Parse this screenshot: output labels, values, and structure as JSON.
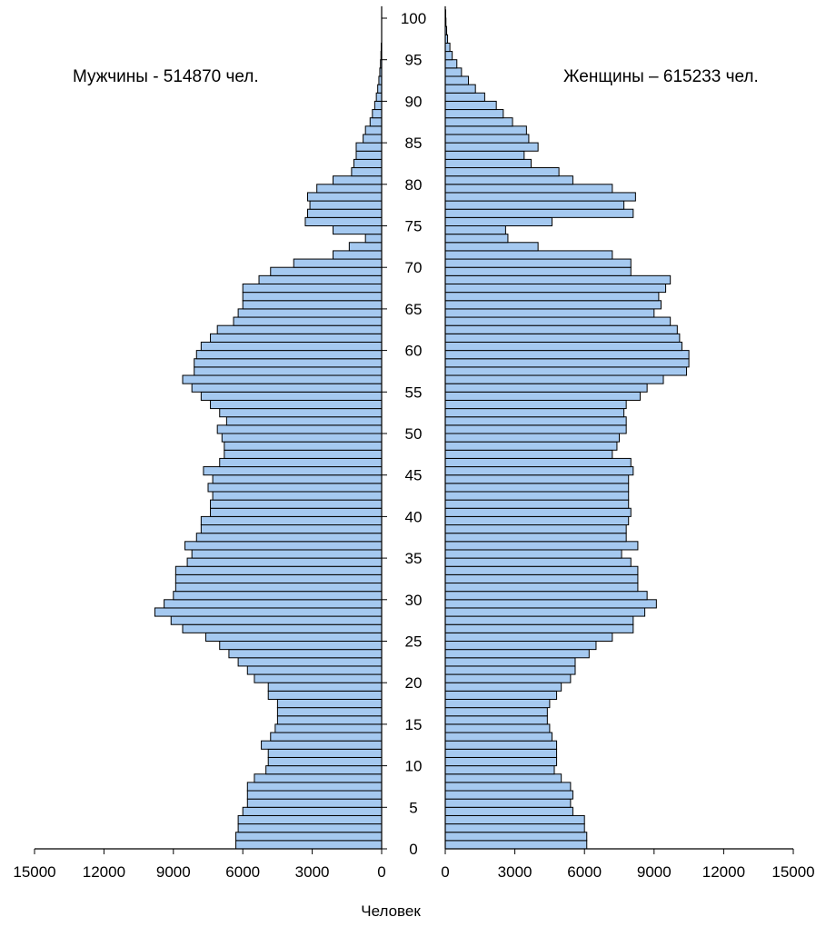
{
  "chart_data": {
    "type": "bar",
    "orientation": "horizontal-pyramid",
    "left_title": "Мужчины - 514870 чел.",
    "right_title": "Женщины – 615233 чел.",
    "xlabel": "Человек",
    "xlim": [
      0,
      15000
    ],
    "x_ticks": [
      0,
      3000,
      6000,
      9000,
      12000,
      15000
    ],
    "x_tick_labels_left": [
      "15000",
      "12000",
      "9000",
      "6000",
      "3000",
      "0"
    ],
    "x_tick_labels_right": [
      "0",
      "3000",
      "6000",
      "9000",
      "12000",
      "15000"
    ],
    "age_ticks": [
      "0",
      "5",
      "10",
      "15",
      "20",
      "25",
      "30",
      "35",
      "40",
      "45",
      "50",
      "55",
      "60",
      "65",
      "70",
      "75",
      "80",
      "85",
      "90",
      "95",
      "100"
    ],
    "ages": [
      0,
      1,
      2,
      3,
      4,
      5,
      6,
      7,
      8,
      9,
      10,
      11,
      12,
      13,
      14,
      15,
      16,
      17,
      18,
      19,
      20,
      21,
      22,
      23,
      24,
      25,
      26,
      27,
      28,
      29,
      30,
      31,
      32,
      33,
      34,
      35,
      36,
      37,
      38,
      39,
      40,
      41,
      42,
      43,
      44,
      45,
      46,
      47,
      48,
      49,
      50,
      51,
      52,
      53,
      54,
      55,
      56,
      57,
      58,
      59,
      60,
      61,
      62,
      63,
      64,
      65,
      66,
      67,
      68,
      69,
      70,
      71,
      72,
      73,
      74,
      75,
      76,
      77,
      78,
      79,
      80,
      81,
      82,
      83,
      84,
      85,
      86,
      87,
      88,
      89,
      90,
      91,
      92,
      93,
      94,
      95,
      96,
      97,
      98,
      99,
      100
    ],
    "series": [
      {
        "name": "Мужчины",
        "values": [
          6300,
          6300,
          6200,
          6200,
          6000,
          5800,
          5800,
          5800,
          5500,
          5000,
          4900,
          4900,
          5200,
          4800,
          4600,
          4500,
          4500,
          4500,
          4900,
          4900,
          5500,
          5800,
          6200,
          6600,
          7000,
          7600,
          8600,
          9100,
          9800,
          9400,
          9000,
          8900,
          8900,
          8900,
          8400,
          8200,
          8500,
          8000,
          7800,
          7800,
          7400,
          7400,
          7300,
          7500,
          7300,
          7700,
          7000,
          6800,
          6800,
          6900,
          7100,
          6700,
          7000,
          7400,
          7800,
          8200,
          8600,
          8100,
          8100,
          8000,
          7800,
          7400,
          7100,
          6400,
          6200,
          6000,
          6000,
          6000,
          5300,
          4800,
          3800,
          2100,
          1400,
          700,
          2100,
          3300,
          3200,
          3100,
          3200,
          2800,
          2100,
          1300,
          1200,
          1100,
          1100,
          800,
          700,
          500,
          400,
          300,
          230,
          170,
          120,
          80,
          50,
          30,
          20,
          10,
          10,
          5,
          5
        ]
      },
      {
        "name": "Женщины",
        "values": [
          6100,
          6100,
          6000,
          6000,
          5500,
          5400,
          5500,
          5400,
          5000,
          4700,
          4800,
          4800,
          4800,
          4600,
          4500,
          4400,
          4400,
          4500,
          4800,
          5000,
          5400,
          5600,
          5600,
          6200,
          6500,
          7200,
          8100,
          8100,
          8600,
          9100,
          8700,
          8300,
          8300,
          8300,
          8000,
          7600,
          8300,
          7800,
          7800,
          7900,
          8000,
          7900,
          7900,
          7900,
          7900,
          8100,
          8000,
          7200,
          7400,
          7500,
          7800,
          7800,
          7700,
          7800,
          8400,
          8700,
          9400,
          10400,
          10500,
          10500,
          10200,
          10100,
          10000,
          9700,
          9000,
          9300,
          9200,
          9500,
          9700,
          8000,
          8000,
          7200,
          4000,
          2700,
          2600,
          4600,
          8100,
          7700,
          8200,
          7200,
          5500,
          4900,
          3700,
          3400,
          4000,
          3600,
          3500,
          2900,
          2500,
          2200,
          1700,
          1300,
          1000,
          700,
          500,
          300,
          200,
          100,
          60,
          30,
          20
        ]
      }
    ]
  }
}
